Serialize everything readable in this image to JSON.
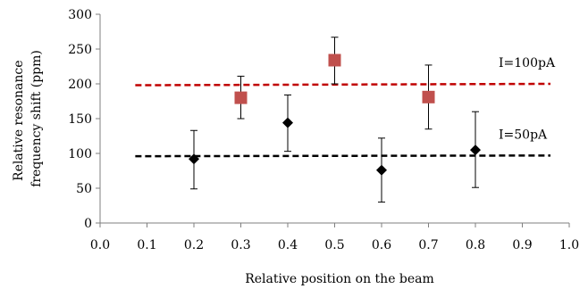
{
  "chart_data": {
    "type": "scatter",
    "xlabel": "Relative position on the beam",
    "ylabel": "Relative resonance frequency shift (ppm)",
    "ylabel_lines": [
      "Relative resonance",
      "frequency shift (ppm)"
    ],
    "xlim": [
      0.0,
      1.0
    ],
    "ylim": [
      0,
      300
    ],
    "x_ticks": [
      "0.0",
      "0.1",
      "0.2",
      "0.3",
      "0.4",
      "0.5",
      "0.6",
      "0.7",
      "0.8",
      "0.9",
      "1.0"
    ],
    "y_ticks": [
      "0",
      "50",
      "100",
      "150",
      "200",
      "250",
      "300"
    ],
    "grid": false,
    "series": [
      {
        "name": "I=100pA",
        "marker": "square",
        "color": "#c0504d",
        "points": [
          {
            "x": 0.3,
            "y": 180,
            "err_low": 150,
            "err_high": 211
          },
          {
            "x": 0.5,
            "y": 234,
            "err_low": 200,
            "err_high": 267
          },
          {
            "x": 0.7,
            "y": 181,
            "err_low": 135,
            "err_high": 227
          }
        ],
        "trend": {
          "x": [
            0.075,
            0.96
          ],
          "y": [
            198,
            200
          ],
          "color": "#c00000",
          "style": "dashed"
        }
      },
      {
        "name": "I=50pA",
        "marker": "diamond",
        "color": "#000000",
        "points": [
          {
            "x": 0.2,
            "y": 92,
            "err_low": 49,
            "err_high": 133
          },
          {
            "x": 0.4,
            "y": 144,
            "err_low": 103,
            "err_high": 184
          },
          {
            "x": 0.6,
            "y": 76,
            "err_low": 30,
            "err_high": 122
          },
          {
            "x": 0.8,
            "y": 105,
            "err_low": 51,
            "err_high": 160
          }
        ],
        "trend": {
          "x": [
            0.075,
            0.96
          ],
          "y": [
            96,
            97
          ],
          "color": "#000000",
          "style": "dashed"
        }
      }
    ]
  }
}
